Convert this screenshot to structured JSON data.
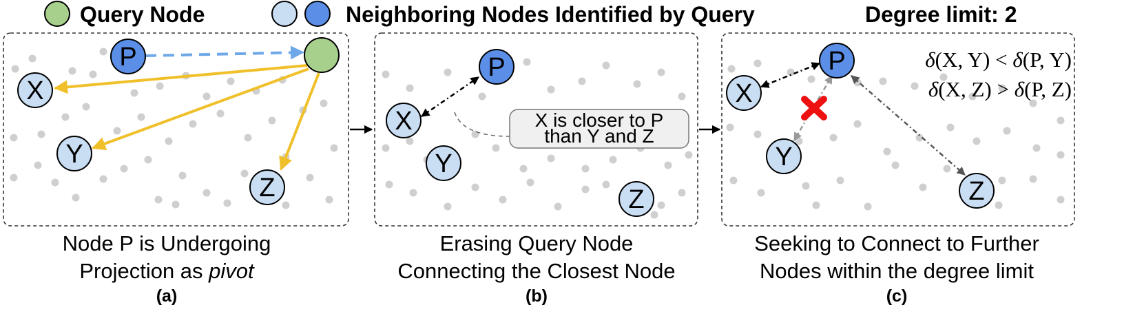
{
  "legend": {
    "query_label": "Query Node",
    "neighbor_label": "Neighboring Nodes Identified by Query",
    "degree_limit": "Degree limit: 2"
  },
  "colors": {
    "query_fill": "#a8d08d",
    "pivot_fill": "#5b8ee6",
    "neighbor_fill": "#c9ddf3",
    "arrow_yellow": "#f0c02a",
    "arrow_blue": "#6fa8e8",
    "dot_gray": "#cfcfcf",
    "cross_red": "#ee1111"
  },
  "nodes": {
    "p": "P",
    "x": "X",
    "y": "Y",
    "z": "Z"
  },
  "panel_a": {
    "caption_line1": "Node P is Undergoing",
    "caption_line2_prefix": "Projection as ",
    "caption_line2_italic": "pivot",
    "label": "(a)"
  },
  "panel_b": {
    "callout_line1": "X is closer to P",
    "callout_line2": "than Y and Z",
    "caption_line1": "Erasing Query Node",
    "caption_line2": "Connecting the Closest Node",
    "label": "(b)"
  },
  "panel_c": {
    "cond1_left": "(X, Y) < ",
    "cond1_right": "(P, Y)",
    "cond2_left": "(X, Z) > ",
    "cond2_right": "(P, Z)",
    "delta": "δ",
    "caption_line1": "Seeking to Connect to Further",
    "caption_line2": "Nodes within the degree limit",
    "label": "(c)"
  }
}
